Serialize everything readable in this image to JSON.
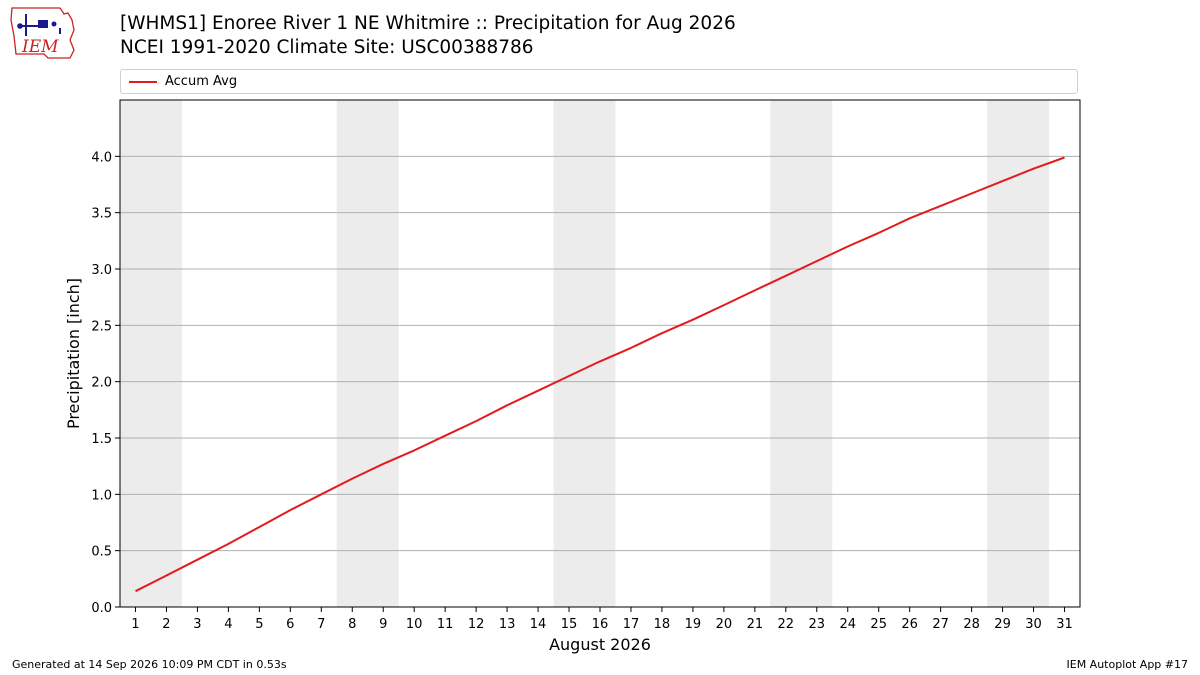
{
  "header": {
    "title_line1": "[WHMS1] Enoree River 1 NE Whitmire :: Precipitation for Aug 2026",
    "title_line2": "NCEI 1991-2020 Climate Site: USC00388786"
  },
  "logo": {
    "text": "IEM",
    "icon": "iem-iowa-logo-icon"
  },
  "footer": {
    "left": "Generated at 14 Sep 2026 10:09 PM CDT in 0.53s",
    "right": "IEM Autoplot App #17"
  },
  "colors": {
    "series": "#e41a1c",
    "weekend_band": "#ececec",
    "grid": "#b0b0b0"
  },
  "chart_data": {
    "type": "line",
    "xlabel": "August 2026",
    "ylabel": "Precipitation [inch]",
    "xlim": [
      0.5,
      31.5
    ],
    "ylim": [
      0,
      4.5
    ],
    "y_ticks": [
      0.0,
      0.5,
      1.0,
      1.5,
      2.0,
      2.5,
      3.0,
      3.5,
      4.0
    ],
    "y_tick_labels": [
      "0.0",
      "0.5",
      "1.0",
      "1.5",
      "2.0",
      "2.5",
      "3.0",
      "3.5",
      "4.0"
    ],
    "x": [
      1,
      2,
      3,
      4,
      5,
      6,
      7,
      8,
      9,
      10,
      11,
      12,
      13,
      14,
      15,
      16,
      17,
      18,
      19,
      20,
      21,
      22,
      23,
      24,
      25,
      26,
      27,
      28,
      29,
      30,
      31
    ],
    "x_tick_labels": [
      "1",
      "2",
      "3",
      "4",
      "5",
      "6",
      "7",
      "8",
      "9",
      "10",
      "11",
      "12",
      "13",
      "14",
      "15",
      "16",
      "17",
      "18",
      "19",
      "20",
      "21",
      "22",
      "23",
      "24",
      "25",
      "26",
      "27",
      "28",
      "29",
      "30",
      "31"
    ],
    "grid": "y",
    "legend_position": "top",
    "weekend_bands": [
      [
        1,
        2
      ],
      [
        8,
        9
      ],
      [
        15,
        16
      ],
      [
        22,
        23
      ],
      [
        29,
        30
      ]
    ],
    "series": [
      {
        "name": "Accum Avg",
        "color": "#e41a1c",
        "values": [
          0.14,
          0.28,
          0.42,
          0.56,
          0.71,
          0.86,
          1.0,
          1.14,
          1.27,
          1.39,
          1.52,
          1.65,
          1.79,
          1.92,
          2.05,
          2.18,
          2.3,
          2.43,
          2.55,
          2.68,
          2.81,
          2.94,
          3.07,
          3.2,
          3.32,
          3.45,
          3.56,
          3.67,
          3.78,
          3.89,
          3.99
        ]
      }
    ]
  }
}
